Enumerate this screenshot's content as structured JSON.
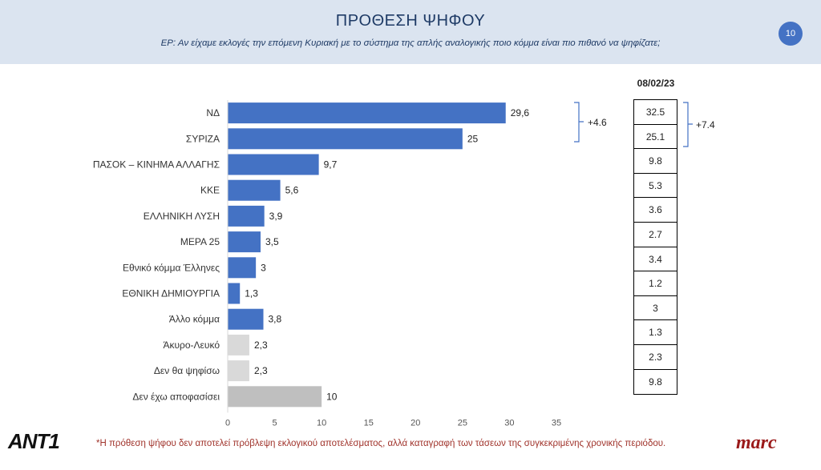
{
  "header": {
    "title": "ΠΡΟΘΕΣΗ ΨΗΦΟΥ",
    "question": "ΕΡ: Αν είχαμε εκλογές την επόμενη Κυριακή με το σύστημα της απλής αναλογικής ποιο κόμμα είναι πιο πιθανό να ψηφίζατε;",
    "page_number": "10"
  },
  "chart_data": {
    "type": "bar",
    "orientation": "horizontal",
    "categories": [
      "ΝΔ",
      "ΣΥΡΙΖΑ",
      "ΠΑΣΟΚ – ΚΙΝΗΜΑ ΑΛΛΑΓΗΣ",
      "ΚΚΕ",
      "ΕΛΛΗΝΙΚΗ ΛΥΣΗ",
      "ΜΕΡΑ 25",
      "Εθνικό κόμμα Έλληνες",
      "ΕΘΝΙΚΗ ΔΗΜΙΟΥΡΓΙΑ",
      "Άλλο κόμμα",
      "Άκυρο-Λευκό",
      "Δεν θα ψηφίσω",
      "Δεν έχω αποφασίσει"
    ],
    "values": [
      29.6,
      25,
      9.7,
      5.6,
      3.9,
      3.5,
      3,
      1.3,
      3.8,
      2.3,
      2.3,
      10
    ],
    "value_labels": [
      "29,6",
      "25",
      "9,7",
      "5,6",
      "3,9",
      "3,5",
      "3",
      "1,3",
      "3,8",
      "2,3",
      "2,3",
      "10"
    ],
    "bar_colors": [
      "#4472c4",
      "#4472c4",
      "#4472c4",
      "#4472c4",
      "#4472c4",
      "#4472c4",
      "#4472c4",
      "#4472c4",
      "#4472c4",
      "#d9d9d9",
      "#d9d9d9",
      "#bfbfbf"
    ],
    "xlim": [
      0,
      35
    ],
    "xticks": [
      0,
      5,
      10,
      15,
      20,
      25,
      30,
      35
    ],
    "grid": false,
    "bracket_annotation": "+4.6"
  },
  "comparison": {
    "date": "08/02/23",
    "values": [
      "32.5",
      "25.1",
      "9.8",
      "5.3",
      "3.6",
      "2.7",
      "3.4",
      "1.2",
      "3",
      "1.3",
      "2.3",
      "9.8"
    ],
    "bracket_annotation": "+7.4"
  },
  "footer": {
    "note": "*Η πρόθεση ψήφου δεν αποτελεί πρόβλεψη εκλογικού αποτελέσματος, αλλά καταγραφή των τάσεων της συγκεκριμένης χρονικής περιόδου.",
    "left_logo": "ANT1",
    "right_logo": "marc"
  }
}
